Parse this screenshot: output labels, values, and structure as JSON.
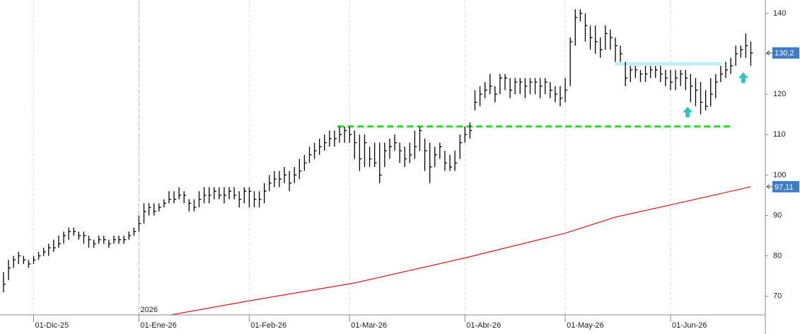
{
  "chart_data": {
    "type": "ohlc",
    "xlim": [
      -0.7,
      151.9
    ],
    "xticks": [
      {
        "value": 6,
        "label": "01-Dic-25"
      },
      {
        "value": 27,
        "label": "01-Ene-26"
      },
      {
        "value": 49,
        "label": "01-Feb-26"
      },
      {
        "value": 69,
        "label": "01-Mar-26"
      },
      {
        "value": 92,
        "label": "01-Abr-26"
      },
      {
        "value": 112,
        "label": "01-May-26"
      },
      {
        "value": 133,
        "label": "01-Jun-26"
      }
    ],
    "year_marker": {
      "value": 27,
      "label": "2026"
    },
    "ylim": [
      65.4,
      143.3
    ],
    "yticks": [
      70,
      80,
      90,
      100,
      110,
      120,
      130,
      140
    ],
    "grid": true,
    "bar_color": "#000000",
    "high": [
      76,
      79,
      80,
      81,
      80,
      79,
      80,
      81,
      82,
      83,
      84,
      85,
      86,
      87,
      87,
      86,
      86,
      85,
      84,
      85,
      85,
      84,
      85,
      85,
      85,
      86,
      87,
      90,
      93,
      93,
      93,
      93,
      94,
      96,
      96,
      97,
      96,
      94,
      94,
      96,
      97,
      97,
      97,
      97,
      97,
      97,
      97,
      96,
      97,
      97,
      96,
      96,
      98,
      100,
      101,
      101,
      102,
      101,
      102,
      104,
      105,
      107,
      108,
      109,
      110,
      111,
      111,
      112,
      112,
      112,
      111,
      110,
      110,
      107,
      108,
      108,
      108,
      109,
      110,
      108,
      107,
      108,
      111,
      112,
      109,
      108,
      107,
      108,
      106,
      105,
      106,
      110,
      112,
      113,
      121,
      122,
      123,
      125,
      122,
      125,
      125,
      124,
      124,
      124,
      124,
      124,
      124,
      124,
      124,
      123,
      122,
      122,
      124,
      134,
      141,
      141,
      140,
      137,
      137,
      134,
      137,
      136,
      134,
      132,
      128,
      127,
      127,
      126,
      127,
      127,
      127,
      127,
      126,
      126,
      126,
      126,
      126,
      125,
      124,
      123,
      121,
      124,
      125,
      127,
      128,
      129,
      132,
      132,
      135,
      133
    ],
    "low": [
      71,
      74,
      77,
      78,
      78,
      77,
      78,
      79,
      80,
      80,
      81,
      82,
      83,
      84,
      85,
      84,
      83,
      82,
      82,
      83,
      83,
      82,
      83,
      83,
      83,
      84,
      85,
      86,
      88,
      90,
      90,
      91,
      92,
      93,
      93,
      94,
      93,
      91,
      91,
      92,
      93,
      93,
      94,
      94,
      93,
      94,
      94,
      92,
      93,
      92,
      92,
      92,
      93,
      96,
      97,
      97,
      98,
      96,
      98,
      99,
      101,
      103,
      104,
      105,
      106,
      107,
      107,
      108,
      108,
      108,
      104,
      101,
      102,
      102,
      102,
      98,
      102,
      104,
      106,
      103,
      102,
      103,
      104,
      106,
      101,
      98,
      102,
      104,
      101,
      101,
      101,
      104,
      108,
      109,
      116,
      117,
      119,
      120,
      118,
      120,
      121,
      119,
      120,
      120,
      119,
      120,
      120,
      119,
      120,
      119,
      118,
      117,
      118,
      122,
      132,
      138,
      133,
      131,
      130,
      129,
      131,
      131,
      128,
      128,
      122,
      123,
      124,
      123,
      123,
      124,
      124,
      123,
      122,
      121,
      121,
      122,
      121,
      118,
      117,
      115,
      116,
      117,
      119,
      123,
      124,
      125,
      127,
      129,
      129,
      127
    ],
    "close": [
      73,
      77,
      79,
      80,
      79,
      78,
      79,
      80,
      81,
      82,
      82,
      83,
      85,
      86,
      86,
      85,
      85,
      84,
      83,
      84,
      84,
      83,
      84,
      84,
      84,
      85,
      86,
      88,
      91,
      92,
      91,
      92,
      93,
      94,
      94,
      95,
      95,
      93,
      92,
      94,
      95,
      95,
      96,
      95,
      95,
      96,
      95,
      94,
      96,
      96,
      94,
      94,
      96,
      98,
      99,
      99,
      100,
      98,
      100,
      101,
      103,
      105,
      106,
      107,
      108,
      109,
      109,
      110,
      111,
      110,
      108,
      104,
      108,
      104,
      103,
      100,
      106,
      107,
      108,
      106,
      104,
      105,
      107,
      111,
      106,
      102,
      105,
      107,
      103,
      102,
      103,
      108,
      110,
      111,
      118,
      120,
      121,
      122,
      120,
      124,
      124,
      121,
      123,
      123,
      122,
      123,
      123,
      122,
      123,
      121,
      120,
      119,
      121,
      133,
      139,
      140,
      137,
      134,
      133,
      131,
      135,
      134,
      132,
      130,
      124,
      126,
      126,
      125,
      125,
      126,
      126,
      125,
      124,
      123,
      124,
      125,
      124,
      122,
      121,
      118,
      117,
      120,
      123,
      125,
      126,
      127,
      130,
      131,
      132,
      130.2
    ],
    "ma": {
      "color": "#d01818",
      "x": [
        32,
        50,
        70,
        92,
        112,
        122,
        133,
        149
      ],
      "values": [
        65.1,
        69.1,
        73.3,
        79.5,
        85.6,
        89.6,
        92.6,
        97.11
      ]
    },
    "levels": [
      {
        "value": 112,
        "x": [
          66.6,
          145.6
        ],
        "color": "#22dd22",
        "style": "dashed"
      },
      {
        "value": 127.5,
        "x": [
          122,
          143
        ],
        "color": "#bff0f4",
        "style": "solid"
      }
    ],
    "arrows": [
      {
        "x": 136.4,
        "y": 115.5,
        "color": "#2ec4c0"
      },
      {
        "x": 147.5,
        "y": 124,
        "color": "#2ec4c0"
      }
    ],
    "price_tags": [
      {
        "value": 130.2,
        "label": "130,2",
        "color": "#3c7cc8"
      },
      {
        "value": 97.11,
        "label": "97,11",
        "color": "#3c7cc8"
      }
    ]
  }
}
